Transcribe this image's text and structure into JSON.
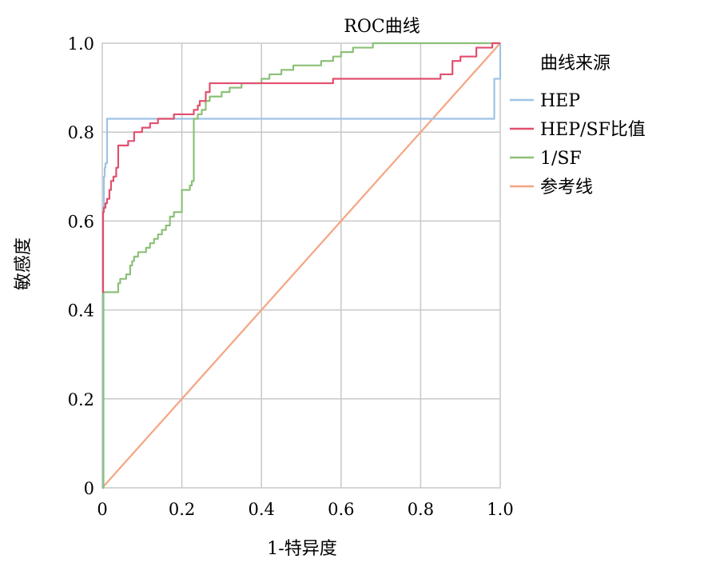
{
  "chart_data": {
    "type": "line",
    "title": "ROC曲线",
    "xlabel": "1-特异度",
    "ylabel": "敏感度",
    "xlim": [
      0,
      1
    ],
    "ylim": [
      0,
      1
    ],
    "x_ticks": [
      "0",
      "0.2",
      "0.4",
      "0.6",
      "0.8",
      "1.0"
    ],
    "y_ticks": [
      "0",
      "0.2",
      "0.4",
      "0.6",
      "0.8",
      "1.0"
    ],
    "grid": true,
    "legend": {
      "title": "曲线来源",
      "placement": "right"
    },
    "series": [
      {
        "name": "HEP",
        "color": "#9dc3e6",
        "step": true,
        "x": [
          0,
          0.002,
          0.004,
          0.006,
          0.008,
          0.012,
          0.98,
          0.985,
          1.0
        ],
        "y": [
          0,
          0.63,
          0.7,
          0.72,
          0.73,
          0.83,
          0.83,
          0.92,
          1.0
        ]
      },
      {
        "name": "HEP/SF比值",
        "color": "#e0506e",
        "step": true,
        "x": [
          0,
          0.002,
          0.004,
          0.008,
          0.012,
          0.018,
          0.022,
          0.028,
          0.035,
          0.04,
          0.05,
          0.065,
          0.08,
          0.1,
          0.12,
          0.14,
          0.15,
          0.17,
          0.18,
          0.2,
          0.23,
          0.24,
          0.245,
          0.26,
          0.27,
          0.3,
          0.55,
          0.58,
          0.83,
          0.85,
          0.88,
          0.9,
          0.94,
          0.98,
          1.0
        ],
        "y": [
          0.44,
          0.62,
          0.63,
          0.64,
          0.65,
          0.67,
          0.69,
          0.7,
          0.72,
          0.77,
          0.77,
          0.78,
          0.8,
          0.81,
          0.82,
          0.83,
          0.83,
          0.83,
          0.84,
          0.84,
          0.85,
          0.86,
          0.87,
          0.89,
          0.91,
          0.91,
          0.91,
          0.92,
          0.92,
          0.93,
          0.96,
          0.97,
          0.99,
          1.0,
          1.0
        ]
      },
      {
        "name": "1/SF",
        "color": "#8cc079",
        "step": true,
        "x": [
          0,
          0.003,
          0.04,
          0.045,
          0.06,
          0.07,
          0.075,
          0.08,
          0.09,
          0.1,
          0.11,
          0.12,
          0.13,
          0.14,
          0.15,
          0.16,
          0.17,
          0.18,
          0.2,
          0.22,
          0.225,
          0.23,
          0.24,
          0.25,
          0.26,
          0.27,
          0.28,
          0.3,
          0.32,
          0.35,
          0.38,
          0.4,
          0.42,
          0.45,
          0.48,
          0.5,
          0.55,
          0.58,
          0.6,
          0.63,
          0.65,
          0.68,
          1.0
        ],
        "y": [
          0,
          0.44,
          0.46,
          0.47,
          0.48,
          0.5,
          0.51,
          0.52,
          0.53,
          0.53,
          0.54,
          0.55,
          0.56,
          0.57,
          0.58,
          0.59,
          0.61,
          0.62,
          0.67,
          0.68,
          0.69,
          0.83,
          0.84,
          0.85,
          0.87,
          0.88,
          0.88,
          0.89,
          0.9,
          0.91,
          0.91,
          0.92,
          0.93,
          0.94,
          0.95,
          0.95,
          0.96,
          0.97,
          0.98,
          0.99,
          0.99,
          1.0,
          1.0
        ]
      },
      {
        "name": "参考线",
        "color": "#f4a582",
        "step": false,
        "x": [
          0,
          1
        ],
        "y": [
          0,
          1
        ]
      }
    ]
  }
}
